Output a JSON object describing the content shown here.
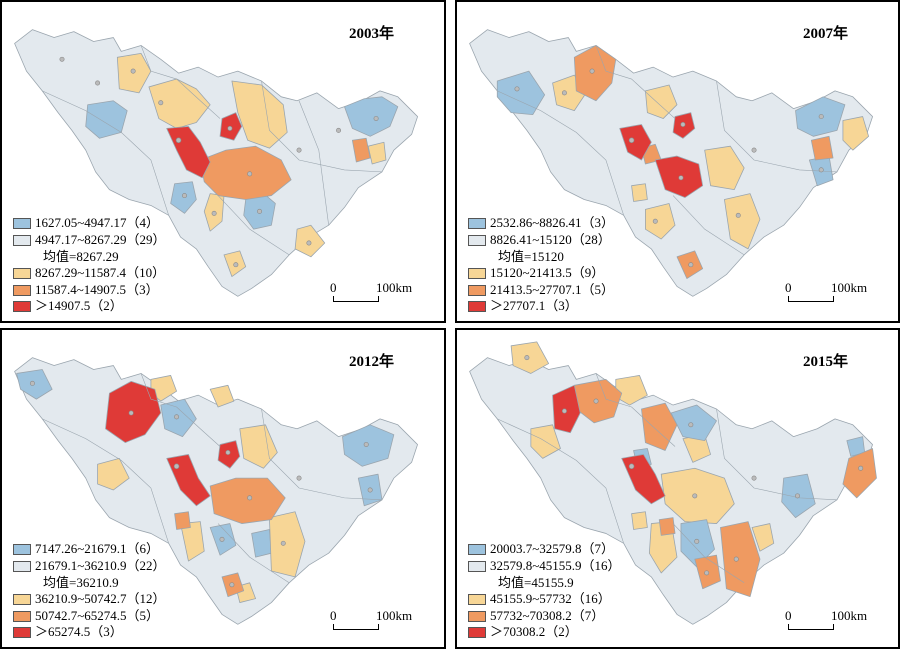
{
  "colors": {
    "c1": "#9dc3de",
    "c2": "#e3e9ee",
    "c3": "#f7d696",
    "c4": "#ef9a61",
    "c5": "#df3a37",
    "border": "#9aa5ae",
    "text": "#000000"
  },
  "scale": {
    "zero": "0",
    "label": "100km"
  },
  "panels": [
    {
      "year": "2003年",
      "legend": [
        {
          "range": "1627.05~4947.17",
          "count": "（4）"
        },
        {
          "range": "4947.17~8267.29",
          "count": "（29）"
        },
        {
          "range": "8267.29~11587.4",
          "count": "（10）"
        },
        {
          "range": "11587.4~14907.5",
          "count": "（3）"
        },
        {
          "range": "＞14907.5",
          "count": "（2）"
        }
      ],
      "mean": "均值=8267.29"
    },
    {
      "year": "2007年",
      "legend": [
        {
          "range": "2532.86~8826.41",
          "count": "（3）"
        },
        {
          "range": "8826.41~15120",
          "count": "（28）"
        },
        {
          "range": "15120~21413.5",
          "count": "（9）"
        },
        {
          "range": "21413.5~27707.1",
          "count": "（5）"
        },
        {
          "range": "＞27707.1",
          "count": "（3）"
        }
      ],
      "mean": "均值=15120"
    },
    {
      "year": "2012年",
      "legend": [
        {
          "range": "7147.26~21679.1",
          "count": "（6）"
        },
        {
          "range": "21679.1~36210.9",
          "count": "（22）"
        },
        {
          "range": "36210.9~50742.7",
          "count": "（12）"
        },
        {
          "range": "50742.7~65274.5",
          "count": "（5）"
        },
        {
          "range": "＞65274.5",
          "count": "（3）"
        }
      ],
      "mean": "均值=36210.9"
    },
    {
      "year": "2015年",
      "legend": [
        {
          "range": "20003.7~32579.8",
          "count": "（7）"
        },
        {
          "range": "32579.8~45155.9",
          "count": "（16）"
        },
        {
          "range": "45155.9~57732",
          "count": "（16）"
        },
        {
          "range": "57732~70308.2",
          "count": "（7）"
        },
        {
          "range": "＞70308.2",
          "count": "（2）"
        }
      ],
      "mean": "均值=45155.9"
    }
  ]
}
